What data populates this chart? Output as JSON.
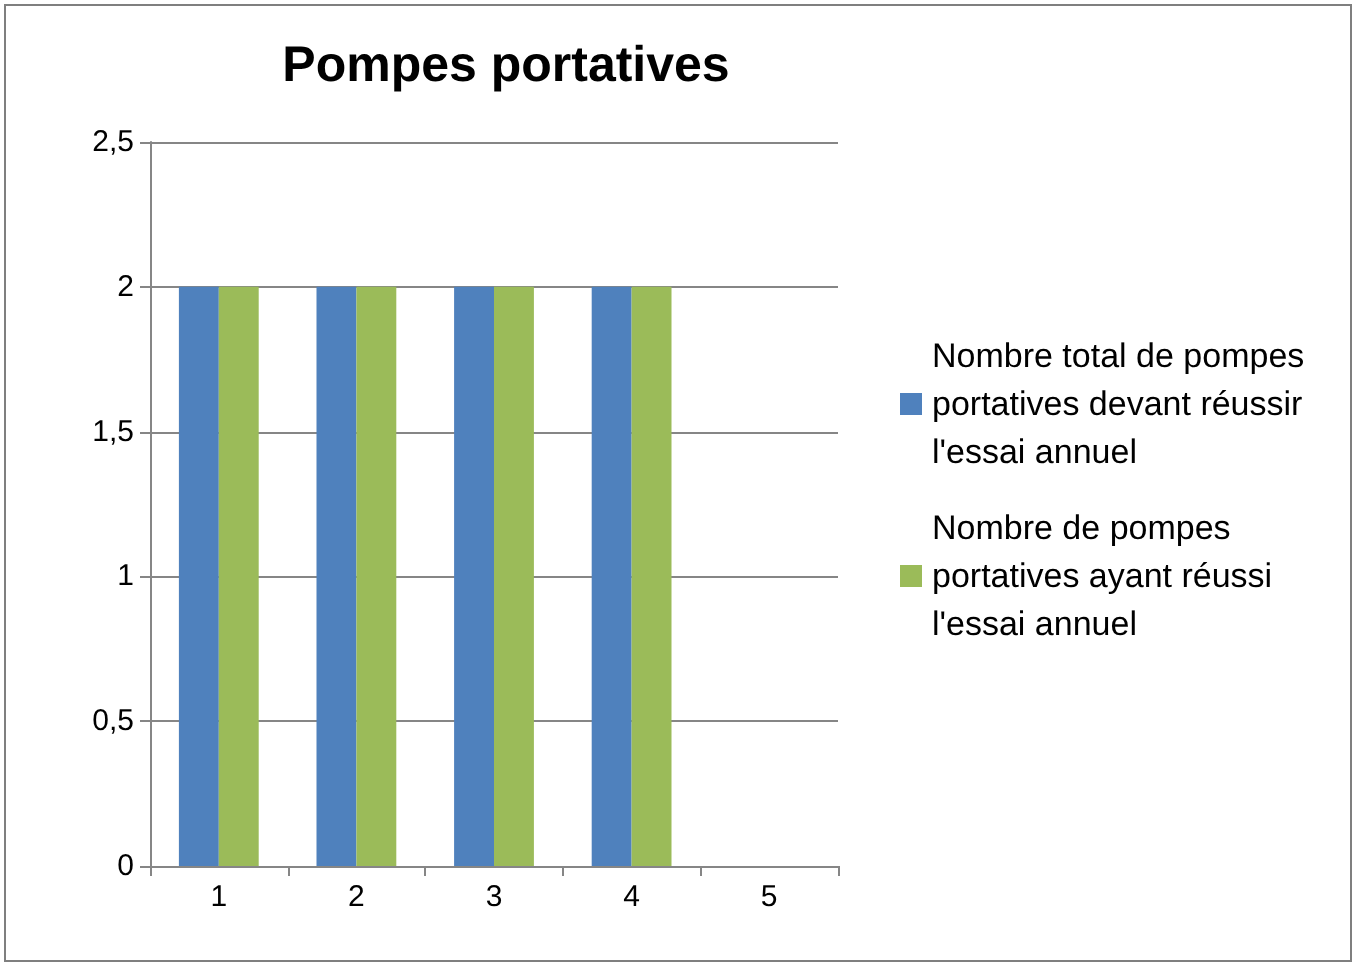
{
  "chart_data": {
    "type": "bar",
    "title": "Pompes portatives",
    "categories": [
      "1",
      "2",
      "3",
      "4",
      "5"
    ],
    "series": [
      {
        "name": "Nombre total de pompes portatives devant réussir l'essai annuel",
        "color": "#4f81bd",
        "values": [
          2,
          2,
          2,
          2,
          null
        ]
      },
      {
        "name": "Nombre de pompes portatives ayant réussi l'essai annuel",
        "color": "#9bbb59",
        "values": [
          2,
          2,
          2,
          2,
          null
        ]
      }
    ],
    "ylim": [
      0,
      2.5
    ],
    "yticks": [
      {
        "value": 0,
        "label": "0"
      },
      {
        "value": 0.5,
        "label": "0,5"
      },
      {
        "value": 1,
        "label": "1"
      },
      {
        "value": 1.5,
        "label": "1,5"
      },
      {
        "value": 2,
        "label": "2"
      },
      {
        "value": 2.5,
        "label": "2,5"
      }
    ],
    "grid": "y",
    "legend": "right"
  }
}
